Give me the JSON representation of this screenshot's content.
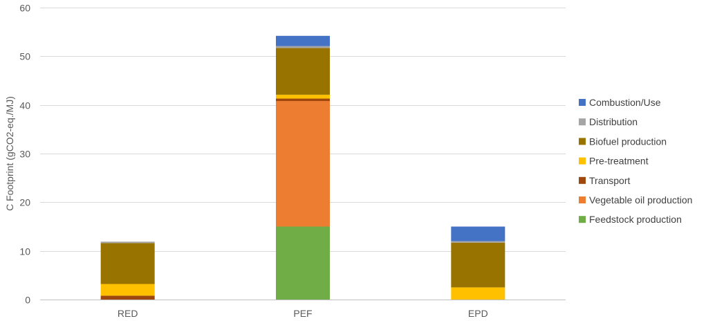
{
  "chart_data": {
    "type": "bar",
    "stacked": true,
    "title": "",
    "xlabel": "",
    "ylabel": "C Footprint (gCO2-eq./MJ)",
    "ylim": [
      0,
      60
    ],
    "yticks": [
      0,
      10,
      20,
      30,
      40,
      50,
      60
    ],
    "grid": true,
    "legend_position": "right",
    "categories": [
      "RED",
      "PEF",
      "EPD"
    ],
    "series": [
      {
        "name": "Feedstock production",
        "color": "#70ad47",
        "values": [
          0,
          15.0,
          0
        ]
      },
      {
        "name": "Vegetable oil production",
        "color": "#ed7d31",
        "values": [
          0,
          25.8,
          0
        ]
      },
      {
        "name": "Transport",
        "color": "#9e480e",
        "values": [
          0.8,
          0.5,
          0
        ]
      },
      {
        "name": "Pre-treatment",
        "color": "#ffc000",
        "values": [
          2.4,
          0.8,
          2.5
        ]
      },
      {
        "name": "Biofuel production",
        "color": "#997300",
        "values": [
          8.4,
          9.6,
          9.2
        ]
      },
      {
        "name": "Distribution",
        "color": "#a5a5a5",
        "values": [
          0.3,
          0.4,
          0.3
        ]
      },
      {
        "name": "Combustion/Use",
        "color": "#4472c4",
        "values": [
          0,
          2.1,
          3.0
        ]
      }
    ],
    "legend_order": [
      "Combustion/Use",
      "Distribution",
      "Biofuel production",
      "Pre-treatment",
      "Transport",
      "Vegetable oil production",
      "Feedstock production"
    ]
  }
}
